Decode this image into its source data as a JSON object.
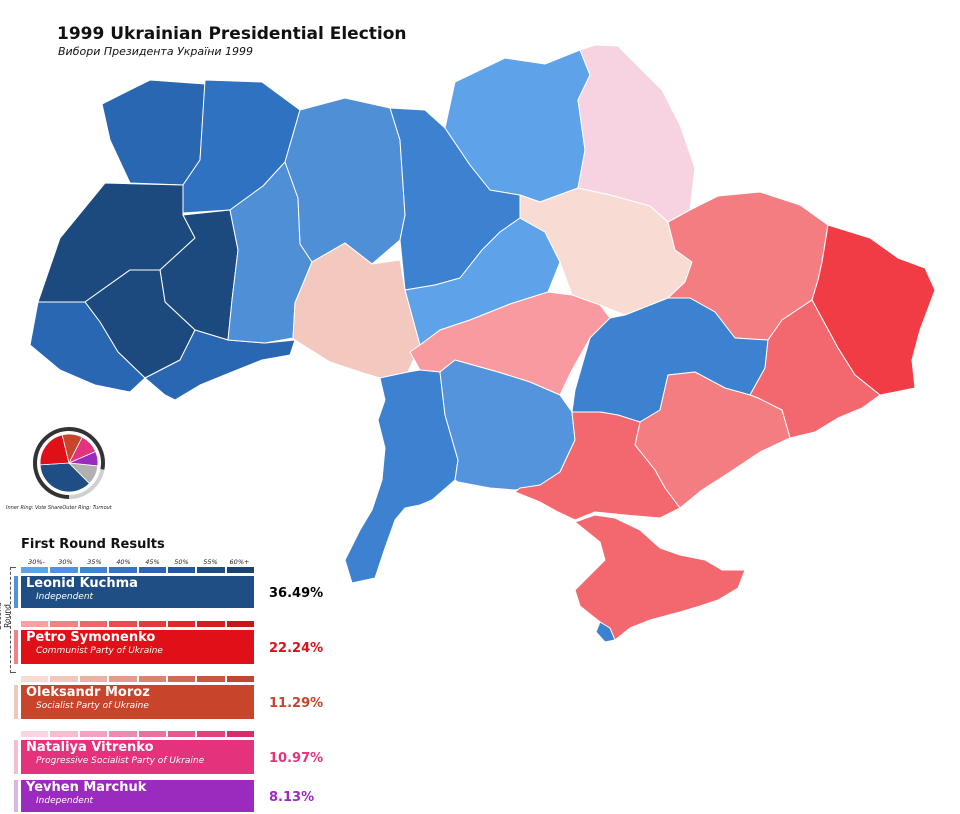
{
  "title": "1999 Ukrainian Presidential Election",
  "subtitle": "Вибори Президента України 1999",
  "pie": {
    "caption": "Inner Ring: Vote ShareOuter Ring: Turnout",
    "turnout_fraction": 0.78,
    "slices": [
      {
        "candidate": "Leonid Kuchma",
        "value": 36.49,
        "color": "#1f4e85"
      },
      {
        "candidate": "Petro Symonenko",
        "value": 22.24,
        "color": "#e01018"
      },
      {
        "candidate": "Oleksandr Moroz",
        "value": 11.29,
        "color": "#c8442a"
      },
      {
        "candidate": "Nataliya Vitrenko",
        "value": 10.97,
        "color": "#e4337c"
      },
      {
        "candidate": "Yevhen Marchuk",
        "value": 8.13,
        "color": "#9b2bbf"
      },
      {
        "candidate": "Other",
        "value": 10.88,
        "color": "#b0b0b0"
      }
    ]
  },
  "results": {
    "title": "First Round Results",
    "scale_ticks": [
      "30%-",
      "30%",
      "35%",
      "40%",
      "45%",
      "50%",
      "55%",
      "60%+"
    ],
    "second_round_label": "Second Round",
    "candidates": [
      {
        "name": "Leonid Kuchma",
        "party": "Independent",
        "percent": "36.49%",
        "color": "#1f4e85",
        "pct_color": "#000000",
        "scale": [
          "#5ea2ea",
          "#4f93dd",
          "#4283cf",
          "#3673c0",
          "#2d65ae",
          "#24589c",
          "#1f4e85",
          "#1a4272"
        ]
      },
      {
        "name": "Petro Symonenko",
        "party": "Communist Party of Ukraine",
        "percent": "22.24%",
        "color": "#e01018",
        "pct_color": "#e01018",
        "scale": [
          "#f7a0a6",
          "#f48088",
          "#f0656e",
          "#ec4b56",
          "#e63840",
          "#e02830",
          "#d81c24",
          "#c8141c"
        ]
      },
      {
        "name": "Oleksandr Moroz",
        "party": "Socialist Party of Ukraine",
        "percent": "11.29%",
        "color": "#c8442a",
        "pct_color": "#c8442a",
        "scale": [
          "#f8dcd4",
          "#f2c7bb",
          "#eab2a2",
          "#e29c88",
          "#d9856e",
          "#d06c52",
          "#c8583c",
          "#bf472a"
        ]
      },
      {
        "name": "Nataliya Vitrenko",
        "party": "Progressive Socialist Party of Ukraine",
        "percent": "10.97%",
        "color": "#e4337c",
        "pct_color": "#e4337c",
        "scale": [
          "#fad4e2",
          "#f6bcd2",
          "#f2a3c1",
          "#ee8ab0",
          "#ea719f",
          "#e6588e",
          "#e2407e",
          "#dc2a6e"
        ]
      },
      {
        "name": "Yevhen Marchuk",
        "party": "Independent",
        "percent": "8.13%",
        "color": "#9b2bbf",
        "pct_color": "#9b2bbf",
        "scale": []
      }
    ]
  },
  "map": {
    "regions": [
      {
        "name": "Volyn",
        "winner": "Leonid Kuchma",
        "color": "#2a67b3"
      },
      {
        "name": "Rivne",
        "winner": "Leonid Kuchma",
        "color": "#2f72c2"
      },
      {
        "name": "Lviv",
        "winner": "Leonid Kuchma",
        "color": "#1d4a7e"
      },
      {
        "name": "Ternopil",
        "winner": "Leonid Kuchma",
        "color": "#1d4a7e"
      },
      {
        "name": "Ivano-Frankivsk",
        "winner": "Leonid Kuchma",
        "color": "#1d4a7e"
      },
      {
        "name": "Zakarpattia",
        "winner": "Leonid Kuchma",
        "color": "#2a67b3"
      },
      {
        "name": "Chernivtsi",
        "winner": "Leonid Kuchma",
        "color": "#2a67b3"
      },
      {
        "name": "Khmelnytskyi",
        "winner": "Leonid Kuchma",
        "color": "#4f8fd6"
      },
      {
        "name": "Zhytomyr",
        "winner": "Leonid Kuchma",
        "color": "#4f8fd6"
      },
      {
        "name": "Kyiv Oblast",
        "winner": "Leonid Kuchma",
        "color": "#3d82d0"
      },
      {
        "name": "Chernihiv",
        "winner": "Leonid Kuchma",
        "color": "#5ea2ea"
      },
      {
        "name": "Vinnytsia",
        "winner": "Oleksandr Moroz",
        "color": "#f2c8bf"
      },
      {
        "name": "Cherkasy",
        "winner": "Leonid Kuchma",
        "color": "#5ea2ea"
      },
      {
        "name": "Sumy",
        "winner": "Nataliya Vitrenko",
        "color": "#f7d2e0"
      },
      {
        "name": "Poltava",
        "winner": "Oleksandr Moroz",
        "color": "#f8dbd3"
      },
      {
        "name": "Kharkiv",
        "winner": "Petro Symonenko",
        "color": "#f47d82"
      },
      {
        "name": "Luhansk",
        "winner": "Petro Symonenko",
        "color": "#f13c46"
      },
      {
        "name": "Kirovohrad",
        "winner": "Petro Symonenko",
        "color": "#f99aa0"
      },
      {
        "name": "Dnipropetrovsk",
        "winner": "Leonid Kuchma",
        "color": "#3d82d0"
      },
      {
        "name": "Donetsk",
        "winner": "Petro Symonenko",
        "color": "#f2686e"
      },
      {
        "name": "Odesa",
        "winner": "Leonid Kuchma",
        "color": "#3d82d0"
      },
      {
        "name": "Mykolaiv",
        "winner": "Leonid Kuchma",
        "color": "#5494dc"
      },
      {
        "name": "Zaporizhzhia",
        "winner": "Petro Symonenko",
        "color": "#f47d82"
      },
      {
        "name": "Kherson",
        "winner": "Petro Symonenko",
        "color": "#f2686e"
      },
      {
        "name": "Crimea",
        "winner": "Petro Symonenko",
        "color": "#f2686e"
      },
      {
        "name": "Sevastopol",
        "winner": "Leonid Kuchma",
        "color": "#3d82d0"
      }
    ]
  }
}
